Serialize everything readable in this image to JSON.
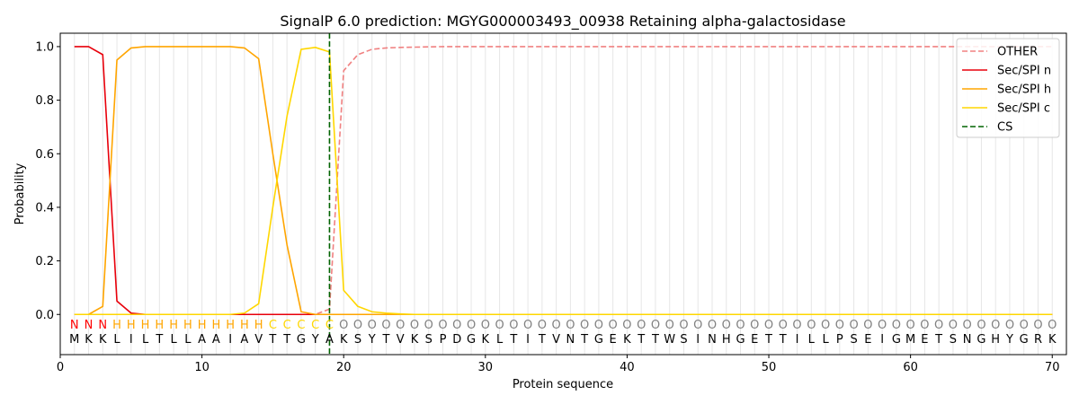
{
  "chart_data": {
    "type": "line",
    "title": "SignalP 6.0 prediction: MGYG000003493_00938 Retaining alpha-galactosidase",
    "xlabel": "Protein sequence",
    "ylabel": "Probability",
    "xlim": [
      0,
      71
    ],
    "ylim": [
      -0.15,
      1.05
    ],
    "x_ticks": [
      "0",
      "10",
      "20",
      "30",
      "40",
      "50",
      "60",
      "70"
    ],
    "y_ticks": [
      "0.0",
      "0.2",
      "0.4",
      "0.6",
      "0.8",
      "1.0"
    ],
    "grid": "vertical lines at each residue position",
    "legend_position": "top-right",
    "sequence": [
      "M",
      "K",
      "K",
      "L",
      "I",
      "L",
      "T",
      "L",
      "L",
      "A",
      "A",
      "I",
      "A",
      "V",
      "T",
      "T",
      "G",
      "Y",
      "A",
      "K",
      "S",
      "Y",
      "T",
      "V",
      "K",
      "S",
      "P",
      "D",
      "G",
      "K",
      "L",
      "T",
      "I",
      "T",
      "V",
      "N",
      "T",
      "G",
      "E",
      "K",
      "T",
      "T",
      "W",
      "S",
      "I",
      "N",
      "H",
      "G",
      "E",
      "T",
      "T",
      "I",
      "L",
      "L",
      "P",
      "S",
      "E",
      "I",
      "G",
      "M",
      "E",
      "T",
      "S",
      "N",
      "G",
      "H",
      "Y",
      "G",
      "R",
      "K"
    ],
    "predicted_labels": [
      "N",
      "N",
      "N",
      "H",
      "H",
      "H",
      "H",
      "H",
      "H",
      "H",
      "H",
      "H",
      "H",
      "H",
      "C",
      "C",
      "C",
      "C",
      "C",
      "O",
      "O",
      "O",
      "O",
      "O",
      "O",
      "O",
      "O",
      "O",
      "O",
      "O",
      "O",
      "O",
      "O",
      "O",
      "O",
      "O",
      "O",
      "O",
      "O",
      "O",
      "O",
      "O",
      "O",
      "O",
      "O",
      "O",
      "O",
      "O",
      "O",
      "O",
      "O",
      "O",
      "O",
      "O",
      "O",
      "O",
      "O",
      "O",
      "O",
      "O",
      "O",
      "O",
      "O",
      "O",
      "O",
      "O",
      "O",
      "O",
      "O",
      "O"
    ],
    "label_colors": {
      "N": "#ff0000",
      "H": "#ffa500",
      "C": "#ffd700",
      "O": "#808080"
    },
    "series": [
      {
        "name": "OTHER",
        "color": "#f08080",
        "style": "dashed",
        "values": [
          0.0,
          0.0,
          0.0,
          0.0,
          0.0,
          0.0,
          0.0,
          0.0,
          0.0,
          0.0,
          0.0,
          0.0,
          0.0,
          0.0,
          0.0,
          0.0,
          0.0,
          0.0,
          0.02,
          0.91,
          0.97,
          0.99,
          0.995,
          0.997,
          0.998,
          0.999,
          1.0,
          1.0,
          1.0,
          1.0,
          1.0,
          1.0,
          1.0,
          1.0,
          1.0,
          1.0,
          1.0,
          1.0,
          1.0,
          1.0,
          1.0,
          1.0,
          1.0,
          1.0,
          1.0,
          1.0,
          1.0,
          1.0,
          1.0,
          1.0,
          1.0,
          1.0,
          1.0,
          1.0,
          1.0,
          1.0,
          1.0,
          1.0,
          1.0,
          1.0,
          1.0,
          1.0,
          1.0,
          1.0,
          1.0,
          1.0,
          1.0,
          1.0,
          1.0,
          1.0
        ]
      },
      {
        "name": "Sec/SPI n",
        "color": "#e8000b",
        "style": "solid",
        "values": [
          1.0,
          1.0,
          0.97,
          0.05,
          0.005,
          0.0,
          0.0,
          0.0,
          0.0,
          0.0,
          0.0,
          0.0,
          0.0,
          0.0,
          0.0,
          0.0,
          0.0,
          0.0,
          0.0,
          0.0,
          0.0,
          0.0,
          0.0,
          0.0,
          0.0,
          0.0,
          0.0,
          0.0,
          0.0,
          0.0,
          0.0,
          0.0,
          0.0,
          0.0,
          0.0,
          0.0,
          0.0,
          0.0,
          0.0,
          0.0,
          0.0,
          0.0,
          0.0,
          0.0,
          0.0,
          0.0,
          0.0,
          0.0,
          0.0,
          0.0,
          0.0,
          0.0,
          0.0,
          0.0,
          0.0,
          0.0,
          0.0,
          0.0,
          0.0,
          0.0,
          0.0,
          0.0,
          0.0,
          0.0,
          0.0,
          0.0,
          0.0,
          0.0,
          0.0,
          0.0
        ]
      },
      {
        "name": "Sec/SPI h",
        "color": "#ffa500",
        "style": "solid",
        "values": [
          0.0,
          0.0,
          0.03,
          0.95,
          0.995,
          1.0,
          1.0,
          1.0,
          1.0,
          1.0,
          1.0,
          1.0,
          0.995,
          0.955,
          0.6,
          0.26,
          0.01,
          0.0,
          0.0,
          0.0,
          0.0,
          0.0,
          0.0,
          0.0,
          0.0,
          0.0,
          0.0,
          0.0,
          0.0,
          0.0,
          0.0,
          0.0,
          0.0,
          0.0,
          0.0,
          0.0,
          0.0,
          0.0,
          0.0,
          0.0,
          0.0,
          0.0,
          0.0,
          0.0,
          0.0,
          0.0,
          0.0,
          0.0,
          0.0,
          0.0,
          0.0,
          0.0,
          0.0,
          0.0,
          0.0,
          0.0,
          0.0,
          0.0,
          0.0,
          0.0,
          0.0,
          0.0,
          0.0,
          0.0,
          0.0,
          0.0,
          0.0,
          0.0,
          0.0,
          0.0
        ]
      },
      {
        "name": "Sec/SPI c",
        "color": "#ffd700",
        "style": "solid",
        "values": [
          0.0,
          0.0,
          0.0,
          0.0,
          0.0,
          0.0,
          0.0,
          0.0,
          0.0,
          0.0,
          0.0,
          0.0,
          0.005,
          0.04,
          0.4,
          0.74,
          0.99,
          0.997,
          0.98,
          0.09,
          0.03,
          0.01,
          0.005,
          0.002,
          0.0,
          0.0,
          0.0,
          0.0,
          0.0,
          0.0,
          0.0,
          0.0,
          0.0,
          0.0,
          0.0,
          0.0,
          0.0,
          0.0,
          0.0,
          0.0,
          0.0,
          0.0,
          0.0,
          0.0,
          0.0,
          0.0,
          0.0,
          0.0,
          0.0,
          0.0,
          0.0,
          0.0,
          0.0,
          0.0,
          0.0,
          0.0,
          0.0,
          0.0,
          0.0,
          0.0,
          0.0,
          0.0,
          0.0,
          0.0,
          0.0,
          0.0,
          0.0,
          0.0,
          0.0,
          0.0
        ]
      }
    ],
    "cleavage_site": {
      "name": "CS",
      "x": 19,
      "color": "#006400",
      "style": "dashed"
    }
  }
}
